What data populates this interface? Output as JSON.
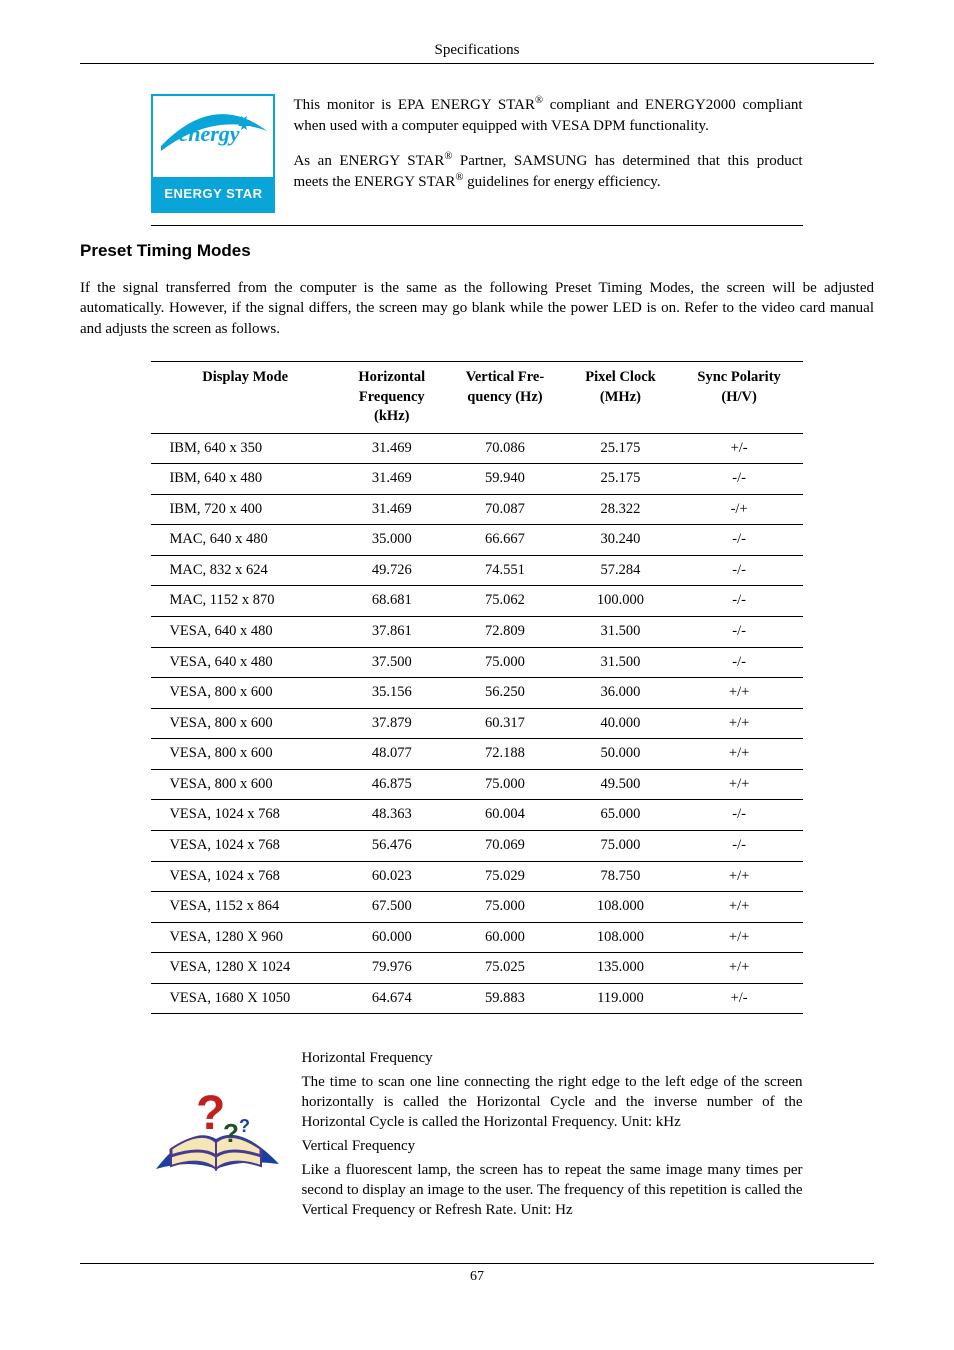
{
  "header": {
    "section": "Specifications"
  },
  "energy_logo": {
    "brand": "ENERGY STAR",
    "border_color": "#0aa5d8",
    "swoosh_color": "#0aa5d8",
    "script_text": "energy",
    "script_color": "#0aa5d8"
  },
  "energy_text": {
    "p1": "This monitor is EPA ENERGY STAR® compliant and ENERGY2000 compliant when used with a computer equipped with VESA DPM functionality.",
    "p2": "As an ENERGY STAR® Partner, SAMSUNG has determined that this product meets the ENERGY STAR® guidelines for energy efficiency."
  },
  "section_title": "Preset Timing Modes",
  "intro": "If the signal transferred from the computer is the same as the following Preset Timing Modes, the screen will be adjusted automatically. However, if the signal differs, the screen may go blank while the power LED is on. Refer to the video card manual and adjusts the screen as follows.",
  "table": {
    "columns": [
      {
        "label": "Display Mode",
        "align": "left"
      },
      {
        "label": "Horizontal Frequency (kHz)",
        "align": "center"
      },
      {
        "label": "Vertical Frequency (Hz)",
        "align": "center"
      },
      {
        "label": "Pixel Clock (MHz)",
        "align": "center"
      },
      {
        "label": "Sync Polarity (H/V)",
        "align": "center"
      }
    ],
    "rows": [
      [
        "IBM, 640 x 350",
        "31.469",
        "70.086",
        "25.175",
        "+/-"
      ],
      [
        "IBM, 640 x 480",
        "31.469",
        "59.940",
        "25.175",
        "-/-"
      ],
      [
        "IBM, 720 x 400",
        "31.469",
        "70.087",
        "28.322",
        "-/+"
      ],
      [
        "MAC, 640 x 480",
        "35.000",
        "66.667",
        "30.240",
        "-/-"
      ],
      [
        "MAC, 832 x 624",
        "49.726",
        "74.551",
        "57.284",
        "-/-"
      ],
      [
        "MAC, 1152 x 870",
        "68.681",
        "75.062",
        "100.000",
        "-/-"
      ],
      [
        "VESA, 640 x 480",
        "37.861",
        "72.809",
        "31.500",
        "-/-"
      ],
      [
        "VESA, 640 x 480",
        "37.500",
        "75.000",
        "31.500",
        "-/-"
      ],
      [
        "VESA, 800 x 600",
        "35.156",
        "56.250",
        "36.000",
        "+/+"
      ],
      [
        "VESA, 800 x 600",
        "37.879",
        "60.317",
        "40.000",
        "+/+"
      ],
      [
        "VESA, 800 x 600",
        "48.077",
        "72.188",
        "50.000",
        "+/+"
      ],
      [
        "VESA, 800 x 600",
        "46.875",
        "75.000",
        "49.500",
        "+/+"
      ],
      [
        "VESA, 1024 x 768",
        "48.363",
        "60.004",
        "65.000",
        "-/-"
      ],
      [
        "VESA, 1024 x 768",
        "56.476",
        "70.069",
        "75.000",
        "-/-"
      ],
      [
        "VESA, 1024 x 768",
        "60.023",
        "75.029",
        "78.750",
        "+/+"
      ],
      [
        "VESA, 1152 x 864",
        "67.500",
        "75.000",
        "108.000",
        "+/+"
      ],
      [
        "VESA, 1280 X 960",
        "60.000",
        "60.000",
        "108.000",
        "+/+"
      ],
      [
        "VESA, 1280 X 1024",
        "79.976",
        "75.025",
        "135.000",
        "+/+"
      ],
      [
        "VESA, 1680 X 1050",
        "64.674",
        "59.883",
        "119.000",
        "+/-"
      ]
    ],
    "border_color": "#000000",
    "font_size": 14.5
  },
  "frequency": {
    "h_label": "Horizontal Frequency",
    "h_text": "The time to scan one line connecting the right edge to the left edge of the screen horizontally is called the Horizontal Cycle and the inverse number of the Horizontal Cycle is called the Horizontal Frequency. Unit: kHz",
    "v_label": "Vertical Frequency",
    "v_text": "Like a fluorescent lamp, the screen has to repeat the same image many times per second to display an image to the user. The frequency of this repetition is called the Vertical Frequency or Refresh Rate. Unit: Hz"
  },
  "page_number": "67",
  "freq_icon": {
    "book_color": "#4a3a8f",
    "page_color": "#f5e6b8",
    "qmark_color": "#c02020",
    "swoosh_color": "#1840a0"
  }
}
